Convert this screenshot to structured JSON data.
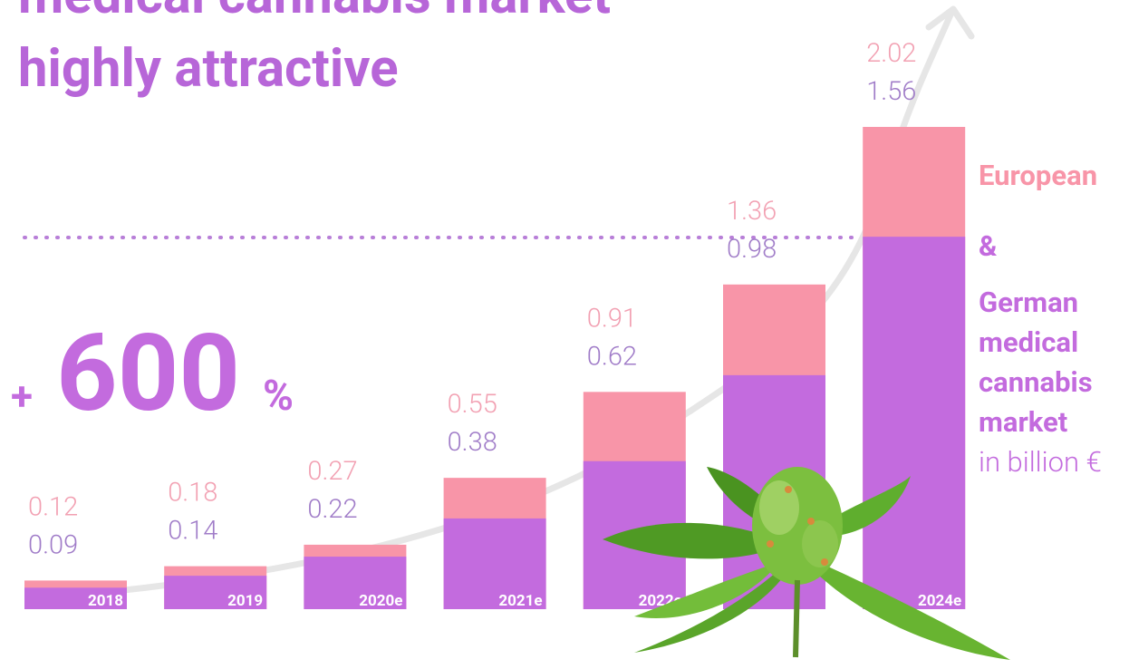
{
  "chart_data": {
    "type": "bar",
    "title_lines": [
      "medical cannabis market",
      "highly attractive"
    ],
    "callout": {
      "sign": "+",
      "number": "600",
      "unit": "%"
    },
    "categories": [
      "2018",
      "2019",
      "2020e",
      "2021e",
      "2022e",
      null,
      "2024e"
    ],
    "series": [
      {
        "name": "European",
        "color": "#f895a8",
        "label_color": "#f2a0b2",
        "values": [
          0.12,
          0.18,
          0.27,
          0.55,
          0.91,
          1.36,
          2.02
        ]
      },
      {
        "name": "German medical cannabis market",
        "color": "#c36bde",
        "label_color": "#a07cc8",
        "values": [
          0.09,
          0.14,
          0.22,
          0.38,
          0.62,
          0.98,
          1.56
        ]
      }
    ],
    "connector": "&",
    "unit": "in billion €",
    "grid": false
  }
}
